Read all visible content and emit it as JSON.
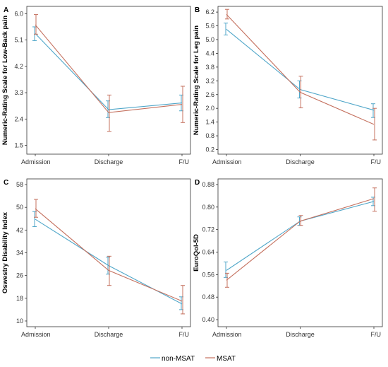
{
  "colors": {
    "non_msat": "#4fa6c9",
    "msat": "#c4705e"
  },
  "legend": [
    {
      "name": "non-MSAT",
      "color": "#4fa6c9"
    },
    {
      "name": "MSAT",
      "color": "#c4705e"
    }
  ],
  "chart_data": [
    {
      "type": "line",
      "panel_label": "A",
      "categories": [
        "Admission",
        "Discharge",
        "F/U"
      ],
      "ylabel": "Numeric-Rating Scale for Low-Back pain",
      "xlabel": "",
      "title": "",
      "ylim": [
        1.2,
        6.25
      ],
      "yticks": [
        "1.5",
        "2.4",
        "3.3",
        "4.2",
        "5.1",
        "6.0"
      ],
      "series": [
        {
          "name": "non-MSAT",
          "color": "#4fa6c9",
          "values": [
            5.32,
            2.72,
            2.95
          ],
          "err_lo": [
            5.08,
            2.45,
            2.68
          ],
          "err_hi": [
            5.55,
            3.02,
            3.22
          ]
        },
        {
          "name": "MSAT",
          "color": "#c4705e",
          "values": [
            5.62,
            2.62,
            2.9
          ],
          "err_lo": [
            5.3,
            1.98,
            2.28
          ],
          "err_hi": [
            5.97,
            3.22,
            3.52
          ]
        }
      ]
    },
    {
      "type": "line",
      "panel_label": "B",
      "categories": [
        "Admission",
        "Discharge",
        "F/U"
      ],
      "ylabel": "Numeric-Rating Scale for Leg pain",
      "xlabel": "",
      "title": "",
      "ylim": [
        0,
        6.45
      ],
      "yticks": [
        "0.2",
        "0.8",
        "1.4",
        "2.0",
        "2.6",
        "3.2",
        "3.8",
        "4.4",
        "5.0",
        "5.6",
        "6.2"
      ],
      "series": [
        {
          "name": "non-MSAT",
          "color": "#4fa6c9",
          "values": [
            5.45,
            2.82,
            1.92
          ],
          "err_lo": [
            5.2,
            2.45,
            1.6
          ],
          "err_hi": [
            5.72,
            3.2,
            2.2
          ]
        },
        {
          "name": "MSAT",
          "color": "#c4705e",
          "values": [
            6.1,
            2.7,
            1.3
          ],
          "err_lo": [
            5.9,
            2.02,
            0.62
          ],
          "err_hi": [
            6.32,
            3.4,
            2.0
          ]
        }
      ]
    },
    {
      "type": "line",
      "panel_label": "C",
      "categories": [
        "Admission",
        "Discharge",
        "F/U"
      ],
      "ylabel": "Oswestry Disability Index",
      "xlabel": "",
      "title": "",
      "ylim": [
        8,
        60
      ],
      "yticks": [
        "10",
        "18",
        "26",
        "34",
        "42",
        "50",
        "58"
      ],
      "series": [
        {
          "name": "non-MSAT",
          "color": "#4fa6c9",
          "values": [
            45.8,
            29.5,
            16.0
          ],
          "err_lo": [
            43.2,
            26.5,
            14.0
          ],
          "err_hi": [
            48.5,
            32.5,
            18.5
          ]
        },
        {
          "name": "MSAT",
          "color": "#c4705e",
          "values": [
            49.5,
            27.8,
            17.0
          ],
          "err_lo": [
            46.5,
            22.5,
            12.5
          ],
          "err_hi": [
            52.8,
            32.8,
            22.5
          ]
        }
      ]
    },
    {
      "type": "line",
      "panel_label": "D",
      "categories": [
        "Admission",
        "Discharge",
        "F/U"
      ],
      "ylabel": "EuroQol-5D",
      "xlabel": "",
      "title": "",
      "ylim": [
        0.375,
        0.9
      ],
      "yticks": [
        "0.40",
        "0.48",
        "0.56",
        "0.64",
        "0.72",
        "0.80",
        "0.88"
      ],
      "series": [
        {
          "name": "non-MSAT",
          "color": "#4fa6c9",
          "values": [
            0.575,
            0.75,
            0.82
          ],
          "err_lo": [
            0.55,
            0.735,
            0.805
          ],
          "err_hi": [
            0.605,
            0.765,
            0.835
          ]
        },
        {
          "name": "MSAT",
          "color": "#c4705e",
          "values": [
            0.54,
            0.75,
            0.83
          ],
          "err_lo": [
            0.515,
            0.735,
            0.785
          ],
          "err_hi": [
            0.565,
            0.77,
            0.868
          ]
        }
      ]
    }
  ]
}
